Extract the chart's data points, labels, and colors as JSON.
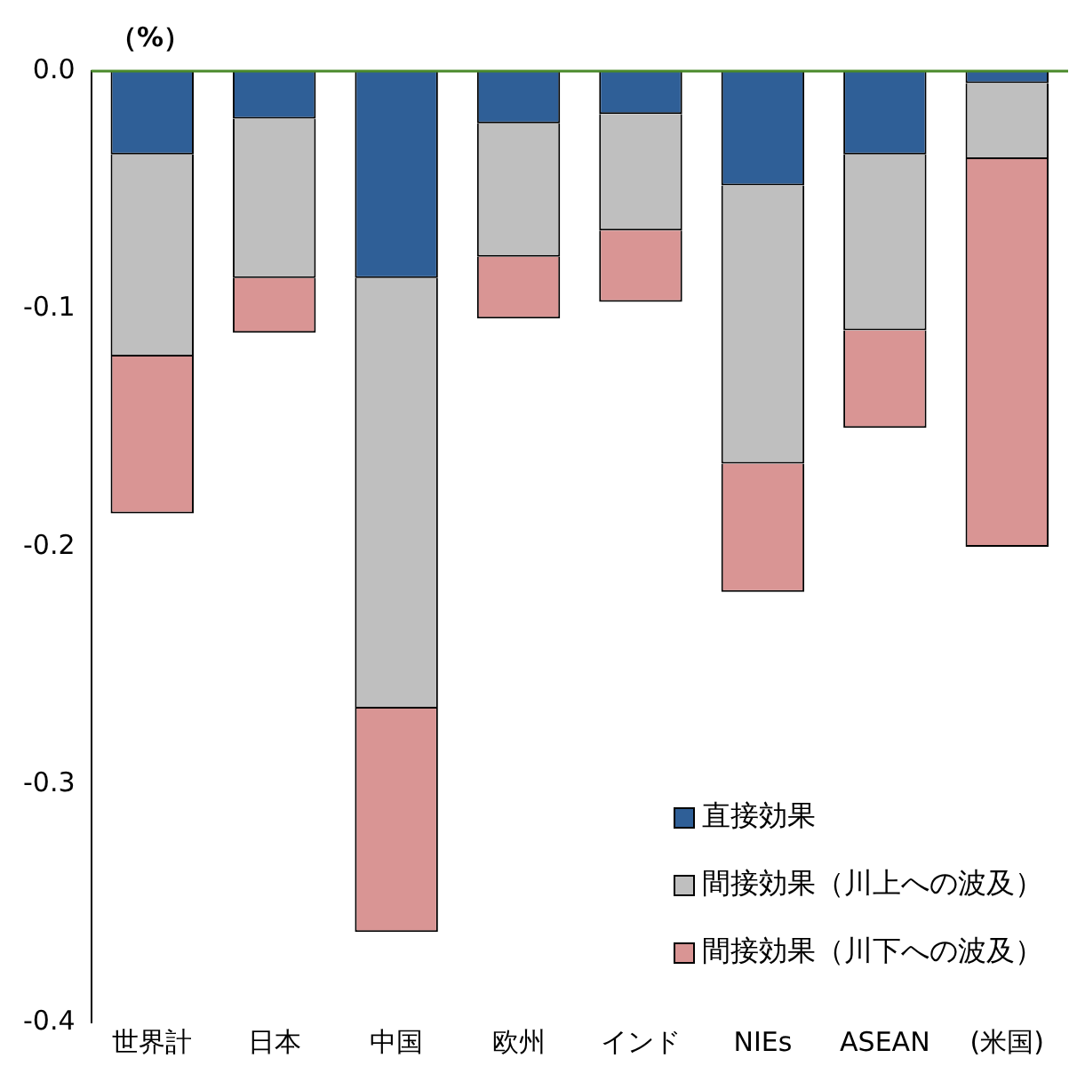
{
  "chart_data": {
    "type": "bar",
    "stacked": true,
    "ylabel": "（%）",
    "categories": [
      "世界計",
      "日本",
      "中国",
      "欧州",
      "インド",
      "NIEs",
      "ASEAN",
      "(米国)"
    ],
    "series": [
      {
        "name": "直接効果",
        "color": "#2f5f97",
        "values": [
          -0.035,
          -0.02,
          -0.087,
          -0.022,
          -0.018,
          -0.048,
          -0.035,
          -0.005
        ]
      },
      {
        "name": "間接効果（川上への波及）",
        "color": "#bfbfbf",
        "values": [
          -0.085,
          -0.067,
          -0.181,
          -0.056,
          -0.049,
          -0.117,
          -0.074,
          -0.032
        ]
      },
      {
        "name": "間接効果（川下への波及）",
        "color": "#d99594",
        "values": [
          -0.066,
          -0.023,
          -0.094,
          -0.026,
          -0.03,
          -0.054,
          -0.041,
          -0.163
        ]
      }
    ],
    "ylim": [
      -0.4,
      0
    ],
    "yticks": [
      {
        "value": 0,
        "label": "0.0"
      },
      -0.1,
      -0.2,
      -0.3,
      -0.4
    ],
    "grid": false,
    "legend": "bottom right"
  }
}
